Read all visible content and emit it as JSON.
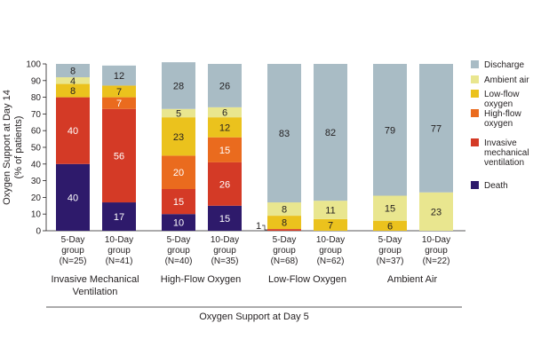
{
  "chart_data": {
    "type": "bar",
    "stacked": true,
    "ylabel_line1": "Oxygen Support at Day 14",
    "ylabel_line2": "(% of patients)",
    "xlabel": "Oxygen Support at Day 5",
    "ylim": [
      0,
      100
    ],
    "yticks": [
      0,
      10,
      20,
      30,
      40,
      50,
      60,
      70,
      80,
      90,
      100
    ],
    "series": [
      {
        "name": "Death",
        "color": "#2e1a6b",
        "text_color": "#ffffff"
      },
      {
        "name": "Invasive mechanical ventilation",
        "color": "#d43a26",
        "text_color": "#ffffff"
      },
      {
        "name": "High-flow oxygen",
        "color": "#ea6b1e",
        "text_color": "#ffffff"
      },
      {
        "name": "Low-flow oxygen",
        "color": "#ebc21d",
        "text_color": "#231f20"
      },
      {
        "name": "Ambient air",
        "color": "#e9e68f",
        "text_color": "#231f20"
      },
      {
        "name": "Discharge",
        "color": "#a9bcc5",
        "text_color": "#231f20"
      }
    ],
    "legend": [
      {
        "series": 5,
        "lines": [
          "Discharge"
        ]
      },
      {
        "series": 4,
        "lines": [
          "Ambient air"
        ]
      },
      {
        "series": 3,
        "lines": [
          "Low-flow",
          "oxygen"
        ]
      },
      {
        "series": 2,
        "lines": [
          "High-flow",
          "oxygen"
        ]
      },
      {
        "series": 1,
        "lines": [
          "Invasive",
          "mechanical",
          "ventilation"
        ]
      },
      {
        "series": 0,
        "lines": [
          "Death"
        ]
      }
    ],
    "groups": [
      {
        "name_lines": [
          "Invasive Mechanical",
          "Ventilation"
        ],
        "bars": [
          {
            "lines": [
              "5-Day",
              "group",
              "(N=25)"
            ],
            "values": [
              40,
              40,
              0,
              8,
              4,
              8
            ],
            "labels": [
              "40",
              "40",
              "",
              "8",
              "4",
              "8"
            ]
          },
          {
            "lines": [
              "10-Day",
              "group",
              "(N=41)"
            ],
            "values": [
              17,
              56,
              7,
              7,
              0,
              12
            ],
            "labels": [
              "17",
              "56",
              "7",
              "7",
              "",
              "12"
            ]
          }
        ]
      },
      {
        "name_lines": [
          "High-Flow Oxygen"
        ],
        "bars": [
          {
            "lines": [
              "5-Day",
              "group",
              "(N=40)"
            ],
            "values": [
              10,
              15,
              20,
              23,
              5,
              28
            ],
            "labels": [
              "10",
              "15",
              "20",
              "23",
              "5",
              "28"
            ]
          },
          {
            "lines": [
              "10-Day",
              "group",
              "(N=35)"
            ],
            "values": [
              15,
              26,
              15,
              12,
              6,
              26
            ],
            "labels": [
              "15",
              "26",
              "15",
              "12",
              "6",
              "26"
            ]
          }
        ]
      },
      {
        "name_lines": [
          "Low-Flow Oxygen"
        ],
        "bars": [
          {
            "lines": [
              "5-Day",
              "group",
              "(N=68)"
            ],
            "values": [
              0,
              1,
              0,
              8,
              8,
              83
            ],
            "labels": [
              "",
              "",
              "",
              "8",
              "8",
              "83"
            ],
            "side_label": "1"
          },
          {
            "lines": [
              "10-Day",
              "group",
              "(N=62)"
            ],
            "values": [
              0,
              0,
              0,
              7,
              11,
              82
            ],
            "labels": [
              "",
              "",
              "",
              "7",
              "11",
              "82"
            ]
          }
        ]
      },
      {
        "name_lines": [
          "Ambient Air"
        ],
        "bars": [
          {
            "lines": [
              "5-Day",
              "group",
              "(N=37)"
            ],
            "values": [
              0,
              0,
              0,
              6,
              15,
              79
            ],
            "labels": [
              "",
              "",
              "",
              "6",
              "15",
              "79"
            ]
          },
          {
            "lines": [
              "10-Day",
              "group",
              "(N=22)"
            ],
            "values": [
              0,
              0,
              0,
              0,
              23,
              77
            ],
            "labels": [
              "",
              "",
              "",
              "",
              "23",
              "77"
            ]
          }
        ]
      }
    ]
  }
}
